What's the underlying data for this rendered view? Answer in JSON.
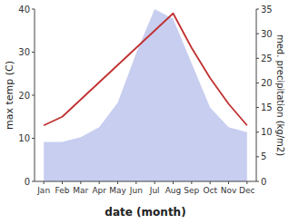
{
  "chart_data": {
    "type": "line",
    "categories": [
      "Jan",
      "Feb",
      "Mar",
      "Apr",
      "May",
      "Jun",
      "Jul",
      "Aug",
      "Sep",
      "Oct",
      "Nov",
      "Dec"
    ],
    "x_label": "date (month)",
    "y_label": "max temp (C)",
    "y2_label": "med. precipitation (kg/m2)",
    "series": [
      {
        "type": "area",
        "axis": "y2",
        "color": "#c8cef0",
        "values": [
          8,
          8,
          9,
          11,
          16,
          26,
          35,
          33,
          24,
          15,
          11,
          10
        ]
      },
      {
        "type": "line",
        "axis": "y",
        "color": "#c03030",
        "values": [
          13,
          15,
          19,
          23,
          27,
          31,
          35,
          39,
          31,
          24,
          18,
          13
        ]
      }
    ],
    "ylim": [
      0,
      40
    ],
    "yticks": [
      0,
      10,
      20,
      30,
      40
    ],
    "y2lim": [
      0,
      35
    ],
    "y2ticks": [
      0,
      5,
      10,
      15,
      20,
      25,
      30,
      35
    ],
    "grid": false
  }
}
